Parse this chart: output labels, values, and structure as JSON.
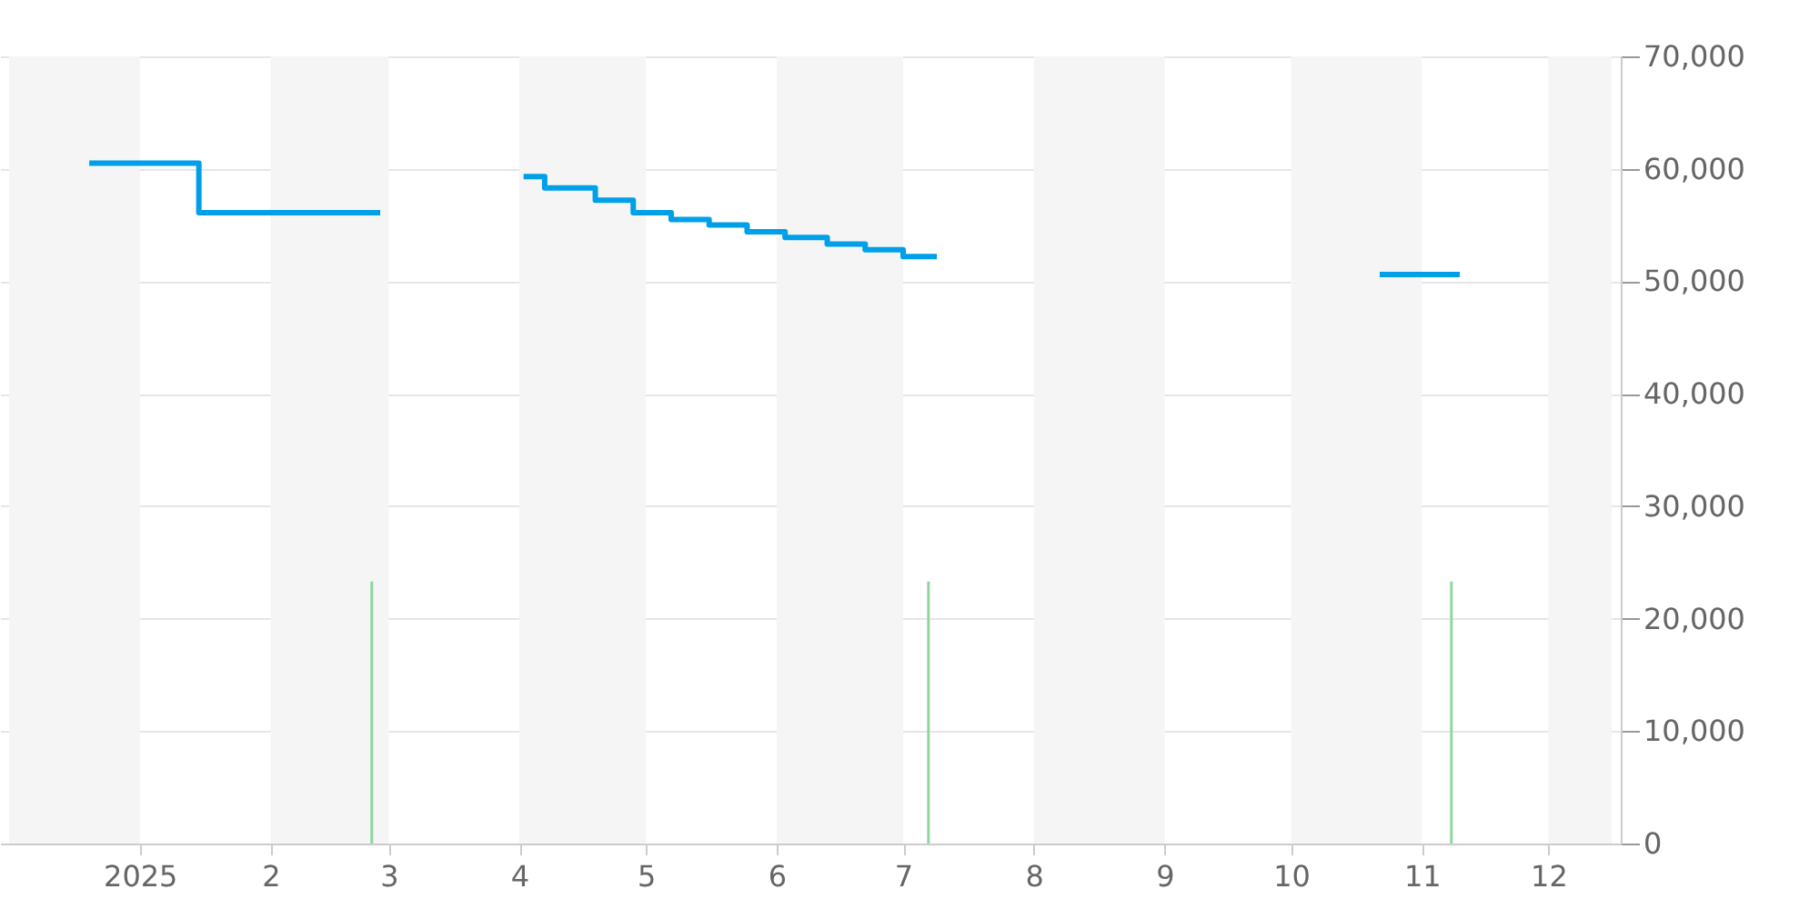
{
  "chart_data": {
    "type": "step",
    "xlim": [
      "2024-12-01",
      "2025-12-16"
    ],
    "xticks": [
      {
        "value": "2025-01-01",
        "label": "2025"
      },
      {
        "value": "2025-02-01",
        "label": "2"
      },
      {
        "value": "2025-03-01",
        "label": "3"
      },
      {
        "value": "2025-04-01",
        "label": "4"
      },
      {
        "value": "2025-05-01",
        "label": "5"
      },
      {
        "value": "2025-06-01",
        "label": "6"
      },
      {
        "value": "2025-07-01",
        "label": "7"
      },
      {
        "value": "2025-08-01",
        "label": "8"
      },
      {
        "value": "2025-09-01",
        "label": "9"
      },
      {
        "value": "2025-10-01",
        "label": "10"
      },
      {
        "value": "2025-11-01",
        "label": "11"
      },
      {
        "value": "2025-12-01",
        "label": "12"
      }
    ],
    "ylim": [
      0,
      70000
    ],
    "yticks": [
      {
        "value": 0,
        "label": "0"
      },
      {
        "value": 10000,
        "label": "10,000"
      },
      {
        "value": 20000,
        "label": "20,000"
      },
      {
        "value": 30000,
        "label": "30,000"
      },
      {
        "value": 40000,
        "label": "40,000"
      },
      {
        "value": 50000,
        "label": "50,000"
      },
      {
        "value": 60000,
        "label": "60,000"
      },
      {
        "value": 70000,
        "label": "70,000"
      }
    ],
    "grid": "y",
    "bands": [
      {
        "axis": "x",
        "from": "2024-12-01",
        "to": "2025-01-01",
        "color": "#f5f5f5"
      },
      {
        "axis": "x",
        "from": "2025-02-01",
        "to": "2025-03-01",
        "color": "#f5f5f5"
      },
      {
        "axis": "x",
        "from": "2025-04-01",
        "to": "2025-05-01",
        "color": "#f5f5f5"
      },
      {
        "axis": "x",
        "from": "2025-06-01",
        "to": "2025-07-01",
        "color": "#f5f5f5"
      },
      {
        "axis": "x",
        "from": "2025-08-01",
        "to": "2025-09-01",
        "color": "#f5f5f5"
      },
      {
        "axis": "x",
        "from": "2025-10-01",
        "to": "2025-11-01",
        "color": "#f5f5f5"
      },
      {
        "axis": "x",
        "from": "2025-12-01",
        "to": "2025-12-16",
        "color": "#f5f5f5"
      }
    ],
    "series": [
      {
        "type": "bar",
        "color": "#8fd6a0",
        "x": [
          "2025-02-25",
          "2025-07-07",
          "2025-11-08"
        ],
        "values": [
          23300,
          23300,
          23300
        ]
      },
      {
        "color": "#00a0e9",
        "x": [
          "2024-12-20",
          "2025-01-15",
          "2025-02-27"
        ],
        "values": [
          60500,
          56100,
          56100
        ]
      },
      {
        "color": "#00a0e9",
        "x": [
          "2025-04-02",
          "2025-04-07",
          "2025-04-19",
          "2025-04-28",
          "2025-05-07",
          "2025-05-16",
          "2025-05-25",
          "2025-06-03",
          "2025-06-13",
          "2025-06-22",
          "2025-07-01",
          "2025-07-09"
        ],
        "values": [
          59300,
          58300,
          57200,
          56100,
          55500,
          55000,
          54400,
          53900,
          53300,
          52800,
          52200,
          52200
        ]
      },
      {
        "color": "#00a0e9",
        "x": [
          "2025-10-22",
          "2025-11-10"
        ],
        "values": [
          50600,
          50600
        ]
      }
    ]
  }
}
